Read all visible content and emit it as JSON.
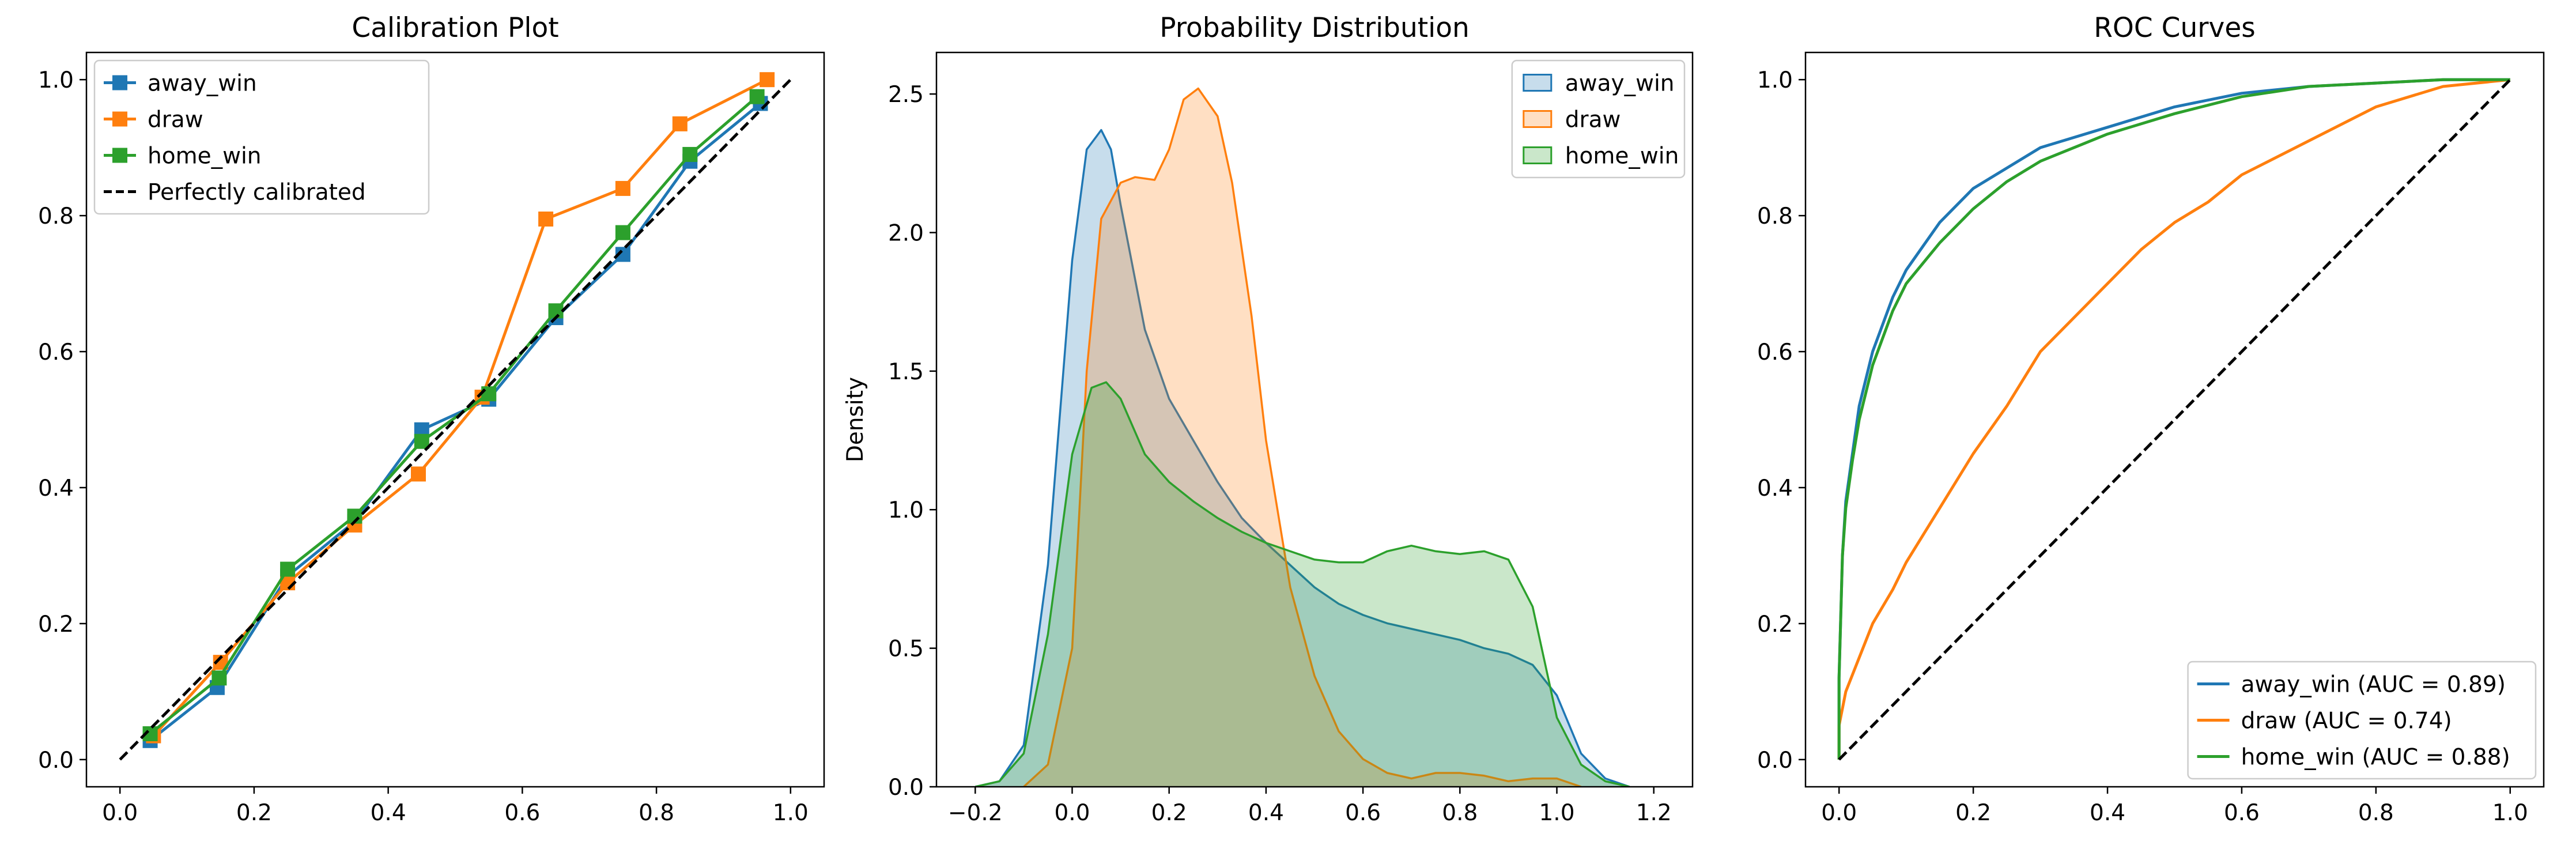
{
  "chart_data": [
    {
      "type": "line",
      "title": "Calibration Plot",
      "xlabel": "",
      "ylabel": "",
      "xlim": [
        -0.05,
        1.05
      ],
      "ylim": [
        -0.04,
        1.04
      ],
      "xticks": [
        "0.0",
        "0.2",
        "0.4",
        "0.6",
        "0.8",
        "1.0"
      ],
      "yticks": [
        "0.0",
        "0.2",
        "0.4",
        "0.6",
        "0.8",
        "1.0"
      ],
      "legend_position": "top-left",
      "series": [
        {
          "name": "away_win",
          "color": "#1f77b4",
          "marker": "square",
          "x": [
            0.045,
            0.145,
            0.25,
            0.35,
            0.45,
            0.55,
            0.65,
            0.75,
            0.85,
            0.955
          ],
          "y": [
            0.028,
            0.106,
            0.27,
            0.35,
            0.485,
            0.53,
            0.65,
            0.743,
            0.88,
            0.965
          ]
        },
        {
          "name": "draw",
          "color": "#ff7f0e",
          "marker": "square",
          "x": [
            0.05,
            0.15,
            0.25,
            0.35,
            0.445,
            0.54,
            0.635,
            0.75,
            0.835,
            0.965
          ],
          "y": [
            0.035,
            0.143,
            0.26,
            0.345,
            0.42,
            0.533,
            0.795,
            0.84,
            0.935,
            1.0
          ]
        },
        {
          "name": "home_win",
          "color": "#2ca02c",
          "marker": "square",
          "x": [
            0.045,
            0.148,
            0.25,
            0.35,
            0.45,
            0.55,
            0.65,
            0.75,
            0.85,
            0.95
          ],
          "y": [
            0.038,
            0.12,
            0.28,
            0.358,
            0.468,
            0.538,
            0.66,
            0.775,
            0.89,
            0.975
          ]
        },
        {
          "name": "Perfectly calibrated",
          "color": "#000000",
          "dash": true,
          "x": [
            0.0,
            1.0
          ],
          "y": [
            0.0,
            1.0
          ]
        }
      ]
    },
    {
      "type": "area",
      "title": "Probability Distribution",
      "xlabel": "",
      "ylabel": "Density",
      "xlim": [
        -0.28,
        1.28
      ],
      "ylim": [
        0,
        2.65
      ],
      "xticks": [
        "−0.2",
        "0.0",
        "0.2",
        "0.4",
        "0.6",
        "0.8",
        "1.0",
        "1.2"
      ],
      "yticks": [
        "0.0",
        "0.5",
        "1.0",
        "1.5",
        "2.0",
        "2.5"
      ],
      "legend_position": "top-right",
      "series": [
        {
          "name": "away_win",
          "color": "#1f77b4",
          "x": [
            -0.2,
            -0.15,
            -0.1,
            -0.05,
            0.0,
            0.03,
            0.06,
            0.08,
            0.1,
            0.15,
            0.2,
            0.25,
            0.3,
            0.35,
            0.4,
            0.45,
            0.5,
            0.55,
            0.6,
            0.65,
            0.7,
            0.75,
            0.8,
            0.85,
            0.9,
            0.95,
            1.0,
            1.05,
            1.1,
            1.15
          ],
          "y": [
            0.0,
            0.02,
            0.15,
            0.8,
            1.9,
            2.3,
            2.37,
            2.3,
            2.1,
            1.65,
            1.4,
            1.25,
            1.1,
            0.97,
            0.88,
            0.8,
            0.72,
            0.66,
            0.62,
            0.59,
            0.57,
            0.55,
            0.53,
            0.5,
            0.48,
            0.44,
            0.33,
            0.12,
            0.03,
            0.0
          ]
        },
        {
          "name": "draw",
          "color": "#ff7f0e",
          "x": [
            -0.1,
            -0.05,
            0.0,
            0.03,
            0.06,
            0.1,
            0.13,
            0.17,
            0.2,
            0.23,
            0.26,
            0.3,
            0.33,
            0.37,
            0.4,
            0.45,
            0.5,
            0.55,
            0.6,
            0.65,
            0.7,
            0.75,
            0.8,
            0.85,
            0.9,
            0.95,
            1.0,
            1.05
          ],
          "y": [
            0.0,
            0.08,
            0.5,
            1.5,
            2.05,
            2.18,
            2.2,
            2.19,
            2.3,
            2.48,
            2.52,
            2.42,
            2.18,
            1.7,
            1.25,
            0.72,
            0.4,
            0.2,
            0.1,
            0.05,
            0.03,
            0.05,
            0.05,
            0.04,
            0.02,
            0.03,
            0.03,
            0.0
          ]
        },
        {
          "name": "home_win",
          "color": "#2ca02c",
          "x": [
            -0.2,
            -0.15,
            -0.1,
            -0.05,
            0.0,
            0.04,
            0.07,
            0.1,
            0.15,
            0.2,
            0.25,
            0.3,
            0.35,
            0.4,
            0.45,
            0.5,
            0.55,
            0.6,
            0.65,
            0.7,
            0.75,
            0.8,
            0.85,
            0.9,
            0.95,
            1.0,
            1.05,
            1.1,
            1.15
          ],
          "y": [
            0.0,
            0.02,
            0.12,
            0.55,
            1.2,
            1.44,
            1.46,
            1.4,
            1.2,
            1.1,
            1.03,
            0.97,
            0.92,
            0.88,
            0.85,
            0.82,
            0.81,
            0.81,
            0.85,
            0.87,
            0.85,
            0.84,
            0.85,
            0.82,
            0.65,
            0.25,
            0.08,
            0.02,
            0.0
          ]
        }
      ]
    },
    {
      "type": "line",
      "title": "ROC Curves",
      "xlabel": "",
      "ylabel": "",
      "xlim": [
        -0.05,
        1.05
      ],
      "ylim": [
        -0.04,
        1.04
      ],
      "xticks": [
        "0.0",
        "0.2",
        "0.4",
        "0.6",
        "0.8",
        "1.0"
      ],
      "yticks": [
        "0.0",
        "0.2",
        "0.4",
        "0.6",
        "0.8",
        "1.0"
      ],
      "legend_position": "bottom-right",
      "series": [
        {
          "name": "away_win (AUC = 0.89)",
          "color": "#1f77b4",
          "x": [
            0.0,
            0.0,
            0.005,
            0.01,
            0.02,
            0.03,
            0.05,
            0.08,
            0.1,
            0.15,
            0.2,
            0.25,
            0.3,
            0.4,
            0.5,
            0.6,
            0.7,
            0.8,
            0.9,
            1.0
          ],
          "y": [
            0.0,
            0.12,
            0.3,
            0.38,
            0.45,
            0.52,
            0.6,
            0.68,
            0.72,
            0.79,
            0.84,
            0.87,
            0.9,
            0.93,
            0.96,
            0.98,
            0.99,
            0.995,
            1.0,
            1.0
          ]
        },
        {
          "name": "draw (AUC = 0.74)",
          "color": "#ff7f0e",
          "x": [
            0.0,
            0.0,
            0.01,
            0.03,
            0.05,
            0.08,
            0.1,
            0.15,
            0.2,
            0.25,
            0.3,
            0.35,
            0.4,
            0.45,
            0.5,
            0.55,
            0.6,
            0.7,
            0.8,
            0.9,
            1.0
          ],
          "y": [
            0.0,
            0.05,
            0.1,
            0.15,
            0.2,
            0.25,
            0.29,
            0.37,
            0.45,
            0.52,
            0.6,
            0.65,
            0.7,
            0.75,
            0.79,
            0.82,
            0.86,
            0.91,
            0.96,
            0.99,
            1.0
          ]
        },
        {
          "name": "home_win (AUC = 0.88)",
          "color": "#2ca02c",
          "x": [
            0.0,
            0.0,
            0.005,
            0.01,
            0.02,
            0.03,
            0.05,
            0.08,
            0.1,
            0.15,
            0.2,
            0.25,
            0.3,
            0.4,
            0.5,
            0.6,
            0.7,
            0.8,
            0.9,
            1.0
          ],
          "y": [
            0.0,
            0.12,
            0.3,
            0.37,
            0.44,
            0.5,
            0.58,
            0.66,
            0.7,
            0.76,
            0.81,
            0.85,
            0.88,
            0.92,
            0.95,
            0.975,
            0.99,
            0.995,
            1.0,
            1.0
          ]
        },
        {
          "name": "",
          "color": "#000000",
          "dash": true,
          "x": [
            0.0,
            1.0
          ],
          "y": [
            0.0,
            1.0
          ]
        }
      ]
    }
  ]
}
